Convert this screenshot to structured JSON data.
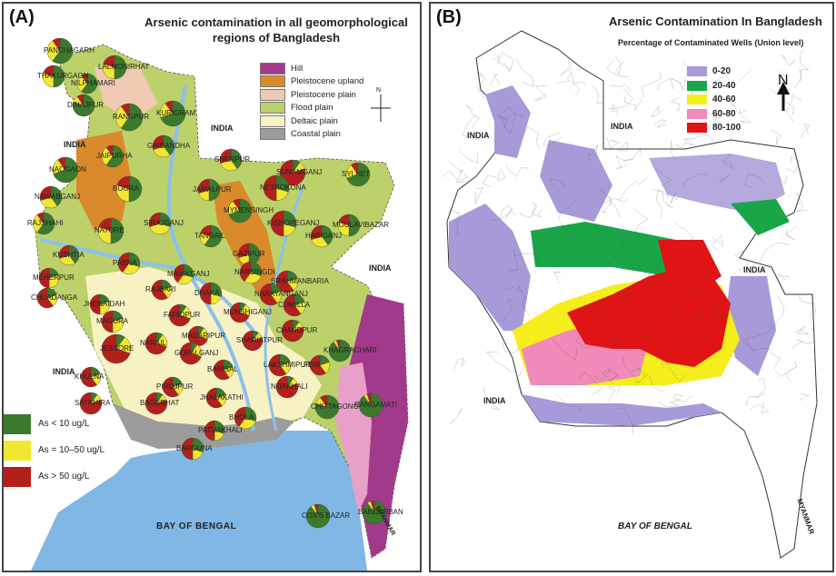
{
  "panel_a": {
    "label": "(A)",
    "title_line1": "Arsenic contamination in all geomorphological",
    "title_line2": "regions of Bangladesh",
    "region_legend": [
      {
        "label": "Hill",
        "color": "#a23a8c"
      },
      {
        "label": "Pleistocene upland",
        "color": "#d98a2b"
      },
      {
        "label": "Pleistocene plain",
        "color": "#efc9b2"
      },
      {
        "label": "Flood plain",
        "color": "#bcd16a"
      },
      {
        "label": "Deltaic plain",
        "color": "#f7f2c4"
      },
      {
        "label": "Coastal plain",
        "color": "#9c9c9c"
      }
    ],
    "arsenic_legend": [
      {
        "label": "As < 10 ug/L",
        "color": "#3b7a2c"
      },
      {
        "label": "As = 10–50 ug/L",
        "color": "#f2e730"
      },
      {
        "label": "As > 50 ug/L",
        "color": "#b3201c"
      }
    ],
    "north": "N",
    "neighbors": [
      "INDIA",
      "INDIA",
      "INDIA",
      "INDIA",
      "MYANMAR"
    ],
    "bay": "BAY OF BENGAL",
    "districts": [
      "PANCHAGARH",
      "THAKURGAON",
      "LALMONIRHAT",
      "NILPHAMARI",
      "DINAJPUR",
      "RANGPUR",
      "KURIGRAM",
      "GAIBANDHA",
      "JAIPURHA",
      "SHERPUR",
      "SUNAMGANJ",
      "SYLHET",
      "NAOGAON",
      "BOGRA",
      "JAMALPUR",
      "NETROKONA",
      "NAWABGANJ",
      "RAJSHAHI",
      "NATORE",
      "SIRAJGANJ",
      "MYMENSINGH",
      "KISHOREGANJ",
      "MOULAVIBAZAR",
      "HABIGANJ",
      "TANGAIL",
      "GAZIPUR",
      "KUSHTIA",
      "PABNA",
      "MANIKGANJ",
      "NARSINGDI",
      "BRAHMANBARIA",
      "MEHERPUR",
      "RAJBARI",
      "DHAKA",
      "NARAYANGANJ",
      "CHUADANGA",
      "JHENAIDAH",
      "FARIDPUR",
      "MUNSHIGANJ",
      "COMILLA",
      "MAGURA",
      "SHARIATPUR",
      "CHANDPUR",
      "JESSORE",
      "NARAIL",
      "MADARIPUR",
      "GOPALGANJ",
      "LAKSHMIPUR",
      "FENI",
      "KHAGRACHARI",
      "KHULNA",
      "BARISAL",
      "PIROJPUR",
      "NOAKHALI",
      "SATKHIRA",
      "BAGERHAT",
      "JHALAKATHI",
      "CHITTAGONG",
      "RANGAMATI",
      "BHOLA",
      "PATUAKHALI",
      "BARGUNA",
      "BANDARBAN",
      "COX'S BAZAR"
    ]
  },
  "panel_b": {
    "label": "(B)",
    "title": "Arsenic Contamination In Bangladesh",
    "subtitle": "Percentage of Contaminated Wells (Union level)",
    "legend": [
      {
        "label": "0-20",
        "color": "#a89ad8"
      },
      {
        "label": "20-40",
        "color": "#1aa548"
      },
      {
        "label": "40-60",
        "color": "#f5ee1c"
      },
      {
        "label": "60-80",
        "color": "#f08ab8"
      },
      {
        "label": "80-100",
        "color": "#e01414"
      }
    ],
    "north": "N",
    "neighbors": [
      "INDIA",
      "INDIA",
      "INDIA",
      "MYANMAR"
    ],
    "bay": "BAY OF BENGAL"
  }
}
